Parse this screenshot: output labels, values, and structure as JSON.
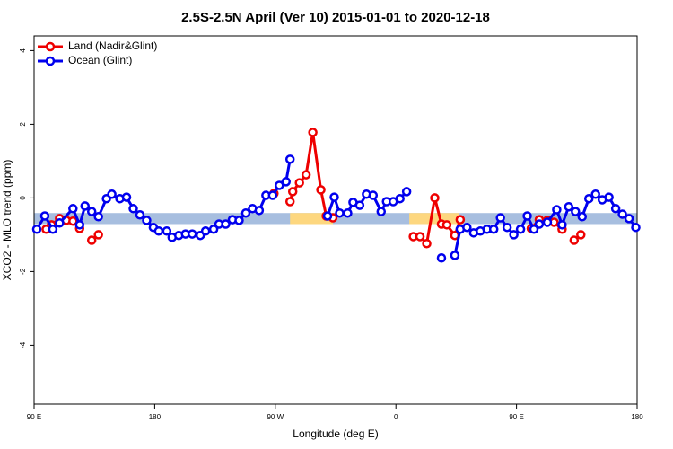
{
  "chart_data": {
    "type": "line",
    "title": "2.5S-2.5N April (Ver 10)   2015-01-01 to 2020-12-18",
    "x_label": "Longitude (deg E)",
    "y_label": "XCO2 - MLO trend (ppm)",
    "xlim": [
      90,
      540
    ],
    "xticks": [
      {
        "value": 90,
        "label": "90 E"
      },
      180,
      {
        "value": 270,
        "label": "90 W"
      },
      {
        "value": 360,
        "label": "0"
      },
      {
        "value": 450,
        "label": "90 E"
      },
      {
        "value": 540,
        "label": "180"
      }
    ],
    "ylim": [
      -5.6,
      4.4
    ],
    "yticks": [
      -4,
      -2,
      0,
      2,
      4
    ],
    "legend": "top-left",
    "band": {
      "ylim": [
        -0.71,
        -0.41
      ],
      "color": "#a7bedf",
      "land_color": "#fdd77f",
      "land_ranges": [
        [
          281,
          313
        ],
        [
          370,
          407
        ]
      ]
    },
    "series": [
      {
        "name": "Land (Nadir&Glint)",
        "color": "#ee0000",
        "x": [
          99,
          103,
          109,
          114,
          119,
          124,
          null,
          133,
          138,
          null,
          269,
          null,
          281,
          283,
          288,
          293,
          298,
          304,
          308,
          313,
          null,
          373,
          378,
          383,
          389,
          394,
          398,
          404,
          408,
          null,
          461,
          467,
          473,
          478,
          484,
          null,
          493,
          498
        ],
        "values": [
          -0.85,
          -0.73,
          -0.56,
          -0.61,
          -0.63,
          -0.83,
          null,
          -1.15,
          -1.0,
          null,
          0.12,
          null,
          -0.1,
          0.17,
          0.41,
          0.63,
          1.78,
          0.22,
          -0.49,
          -0.54,
          null,
          -1.05,
          -1.05,
          -1.24,
          0.0,
          -0.71,
          -0.73,
          -1.02,
          -0.59,
          null,
          -0.83,
          -0.59,
          -0.61,
          -0.66,
          -0.85,
          null,
          -1.15,
          -1.0
        ]
      },
      {
        "name": "Ocean (Glint)",
        "color": "#0000ee",
        "x": [
          92,
          98,
          104,
          109,
          119,
          124,
          128,
          133,
          138,
          144,
          148,
          154,
          159,
          164,
          169,
          174,
          179,
          183,
          189,
          193,
          198,
          203,
          208,
          214,
          218,
          224,
          228,
          233,
          238,
          243,
          248,
          253,
          258,
          263,
          268,
          273,
          278,
          281,
          null,
          309,
          314,
          318,
          324,
          328,
          333,
          338,
          343,
          349,
          353,
          358,
          363,
          368,
          null,
          394,
          null,
          404,
          408,
          413,
          418,
          423,
          428,
          433,
          438,
          443,
          448,
          453,
          458,
          463,
          467,
          473,
          480,
          484,
          489,
          494,
          499,
          504,
          509,
          514,
          519,
          524,
          529,
          534,
          539
        ],
        "values": [
          -0.85,
          -0.49,
          -0.85,
          -0.68,
          -0.29,
          -0.73,
          -0.22,
          -0.37,
          -0.51,
          -0.02,
          0.1,
          -0.02,
          0.02,
          -0.29,
          -0.46,
          -0.61,
          -0.8,
          -0.9,
          -0.9,
          -1.07,
          -1.02,
          -0.98,
          -0.98,
          -1.02,
          -0.9,
          -0.85,
          -0.71,
          -0.71,
          -0.59,
          -0.61,
          -0.41,
          -0.29,
          -0.34,
          0.07,
          0.07,
          0.34,
          0.44,
          1.05,
          null,
          -0.49,
          0.02,
          -0.41,
          -0.41,
          -0.12,
          -0.2,
          0.1,
          0.07,
          -0.37,
          -0.1,
          -0.1,
          -0.02,
          0.17,
          null,
          -1.63,
          null,
          -1.56,
          -0.85,
          -0.8,
          -0.95,
          -0.9,
          -0.85,
          -0.85,
          -0.54,
          -0.8,
          -1.0,
          -0.85,
          -0.49,
          -0.85,
          -0.71,
          -0.66,
          -0.32,
          -0.73,
          -0.24,
          -0.37,
          -0.51,
          -0.02,
          0.1,
          -0.05,
          0.02,
          -0.29,
          -0.44,
          -0.56,
          -0.8
        ]
      }
    ]
  }
}
